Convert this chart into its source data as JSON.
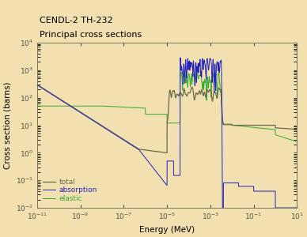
{
  "title_line1": "CENDL-2 TH-232",
  "title_line2": "Principal cross sections",
  "xlabel": "Energy (MeV)",
  "ylabel": "Cross section (barns)",
  "background_color": "#f2e0b0",
  "plot_bg_color": "#f2e0b0",
  "line_colors": {
    "total": "#6b6b4a",
    "absorption": "#2222bb",
    "elastic": "#33aa33"
  },
  "legend_labels": [
    "total",
    "absorption",
    "elastic"
  ],
  "figsize": [
    3.88,
    3.0
  ],
  "dpi": 100
}
